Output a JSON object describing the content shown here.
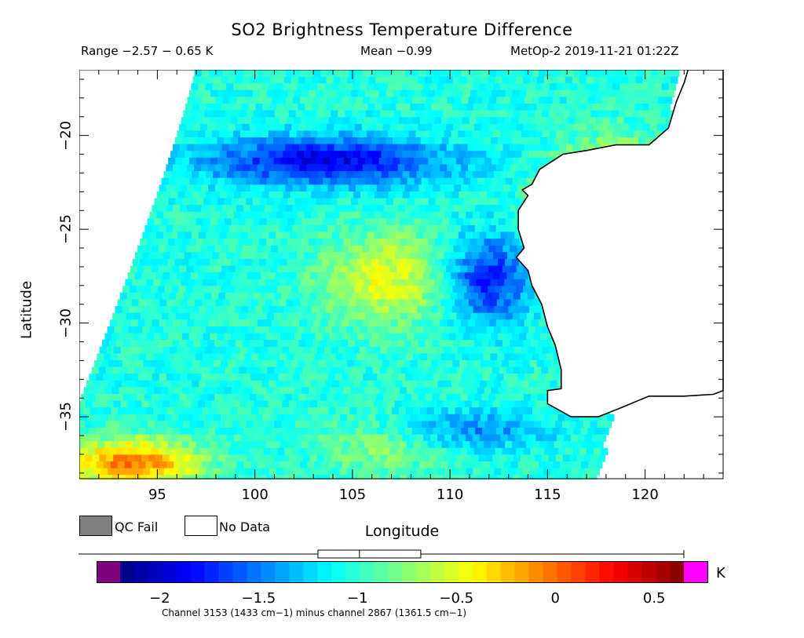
{
  "header": {
    "title": "SO2 Brightness Temperature Difference",
    "range_text": "Range −2.57 − 0.65 K",
    "mean_text": "Mean −0.99",
    "source_text": "MetOp-2 2019-11-21 01:22Z"
  },
  "axes": {
    "xlabel": "Longitude",
    "ylabel": "Latitude",
    "xlim": [
      91,
      124
    ],
    "ylim": [
      -38.3,
      -16.5
    ],
    "xticks": [
      {
        "value": 95,
        "label": "95"
      },
      {
        "value": 100,
        "label": "100"
      },
      {
        "value": 105,
        "label": "105"
      },
      {
        "value": 110,
        "label": "110"
      },
      {
        "value": 115,
        "label": "115"
      },
      {
        "value": 120,
        "label": "120"
      }
    ],
    "yticks": [
      {
        "value": -20,
        "label": "−20"
      },
      {
        "value": -25,
        "label": "−25"
      },
      {
        "value": -30,
        "label": "−30"
      },
      {
        "value": -35,
        "label": "−35"
      }
    ]
  },
  "legend": {
    "qc_fail": {
      "label": "QC Fail",
      "color": "#808080"
    },
    "no_data": {
      "label": "No Data",
      "color": "#ffffff"
    }
  },
  "colorbar": {
    "unit": "K",
    "range": [
      -2.2,
      0.65
    ],
    "ticks": [
      {
        "value": -2,
        "label": "−2"
      },
      {
        "value": -1.5,
        "label": "−1.5"
      },
      {
        "value": -1,
        "label": "−1"
      },
      {
        "value": -0.5,
        "label": "−0.5"
      },
      {
        "value": 0,
        "label": "0"
      },
      {
        "value": 0.5,
        "label": "0.5"
      }
    ],
    "underflow_color": "#800080",
    "overflow_color": "#ff00ff",
    "boxplot": {
      "whisker_low": -2.57,
      "q1": -1.2,
      "median": -0.99,
      "q3": -0.68,
      "whisker_high": 0.65
    },
    "caption": "Channel 3153 (1433 cm−1) minus channel 2867 (1361.5 cm−1)"
  },
  "features": {
    "swath_color_hint": "jet",
    "coastline_color": "#000000"
  }
}
